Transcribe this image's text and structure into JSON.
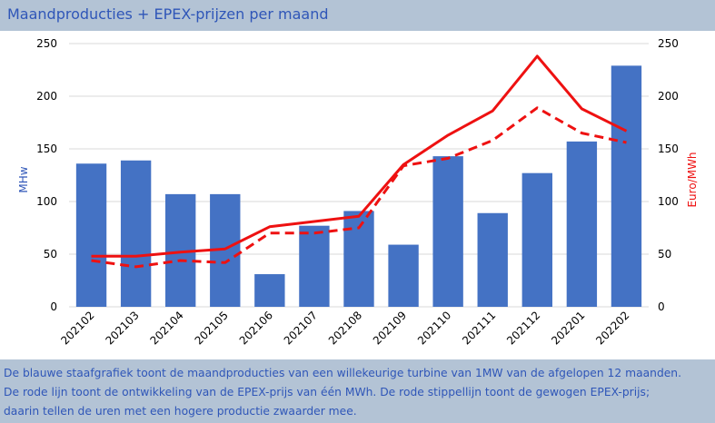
{
  "title": "Maandproducties + EPEX-prijzen per maand",
  "caption_lines": [
    "De blauwe staafgrafiek toont de maandproducties van een willekeurige turbine van 1MW van de afgelopen 12 maanden.",
    "De rode lijn toont de ontwikkeling van de EPEX-prijs van één MWh. De rode stippellijn toont de gewogen EPEX-prijs;",
    "daarin tellen de uren met een hogere productie zwaarder mee."
  ],
  "chart_data": {
    "type": "bar",
    "categories": [
      "202102",
      "202103",
      "202104",
      "202105",
      "202106",
      "202107",
      "202108",
      "202109",
      "202110",
      "202111",
      "202112",
      "202201",
      "202202"
    ],
    "series": [
      {
        "type": "bar",
        "axis": "left",
        "color": "#4472c4",
        "values": [
          136,
          139,
          107,
          107,
          31,
          77,
          91,
          59,
          143,
          89,
          127,
          157,
          229
        ]
      },
      {
        "type": "line",
        "axis": "right",
        "color": "#ee1111",
        "dash": false,
        "values": [
          48,
          48,
          52,
          55,
          76,
          81,
          86,
          135,
          163,
          186,
          238,
          188,
          167
        ]
      },
      {
        "type": "line",
        "axis": "right",
        "color": "#ee1111",
        "dash": true,
        "values": [
          44,
          38,
          44,
          42,
          70,
          70,
          75,
          134,
          141,
          158,
          189,
          165,
          156
        ]
      }
    ],
    "ylabel": "MHw",
    "y2label": "Euro/MWh",
    "ylim": [
      0,
      250
    ],
    "y2lim": [
      0,
      250
    ],
    "yticks": [
      "0",
      "50",
      "100",
      "150",
      "200",
      "250"
    ],
    "y2ticks": [
      "0",
      "50",
      "100",
      "150",
      "200",
      "250"
    ],
    "grid": true,
    "colors": {
      "axis_left": "#2f56b8",
      "axis_right": "#ee1111",
      "text": "#2f56b8",
      "grid": "#d9d9d9"
    }
  }
}
